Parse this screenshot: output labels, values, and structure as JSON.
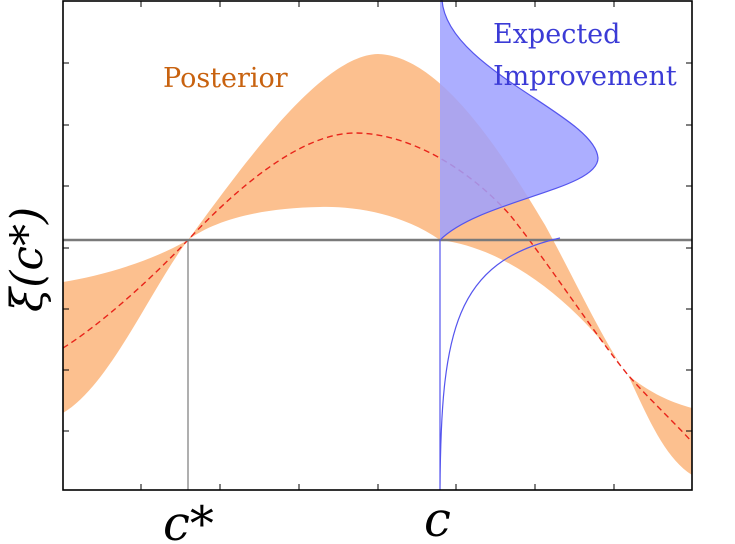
{
  "figure": {
    "y_axis_label": "ξ(c*)",
    "x_tick_cstar": "c*",
    "x_tick_c": "c",
    "posterior_label": "Posterior",
    "ei_label_line1": "Expected",
    "ei_label_line2": "Improvement"
  },
  "colors": {
    "posterior_band": "#fcc08f",
    "posterior_text": "#c8620f",
    "mean_line": "#e8241a",
    "ei_fill": "#9da0ff",
    "ei_line": "#5555ee",
    "ei_text": "#3b3bd6",
    "best_line": "#7a7a7a",
    "axes": "#000000"
  }
}
